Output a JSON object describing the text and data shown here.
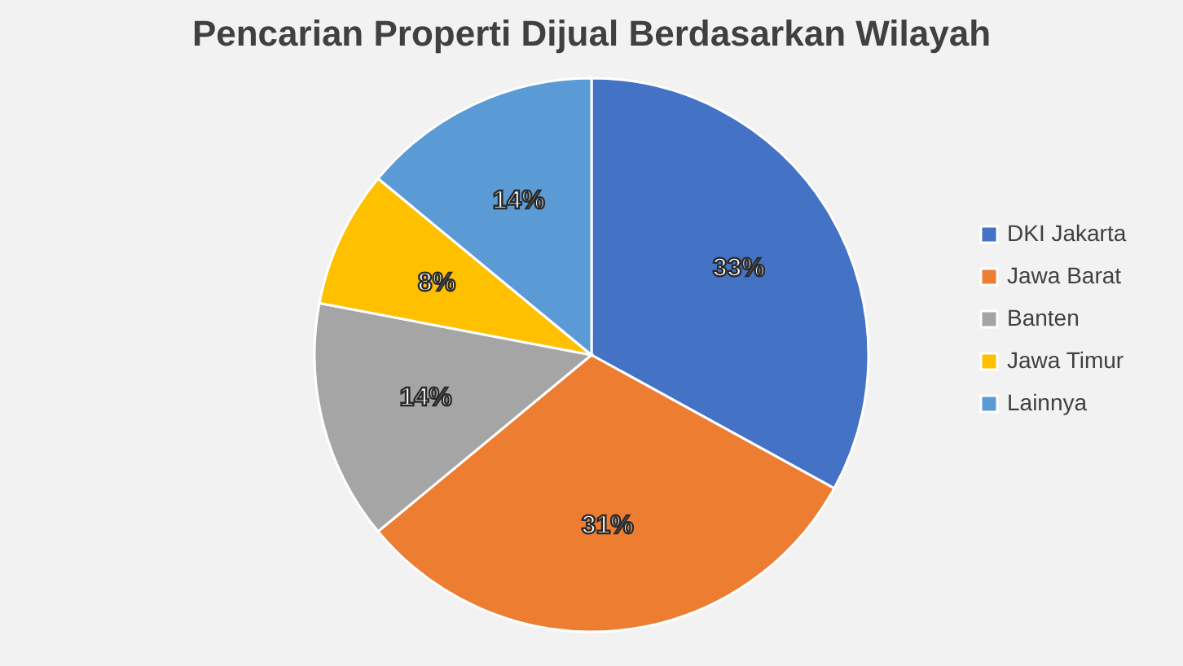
{
  "chart_data": {
    "type": "pie",
    "title": "Pencarian Properti Dijual Berdasarkan Wilayah",
    "categories": [
      "DKI Jakarta",
      "Jawa Barat",
      "Banten",
      "Jawa Timur",
      "Lainnya"
    ],
    "values": [
      33,
      31,
      14,
      8,
      14
    ],
    "value_labels": [
      "33%",
      "31%",
      "14%",
      "8%",
      "14%"
    ],
    "colors": [
      "#4472c4",
      "#ed7d31",
      "#a5a5a5",
      "#ffc000",
      "#5b9bd5"
    ],
    "legend": "right"
  }
}
